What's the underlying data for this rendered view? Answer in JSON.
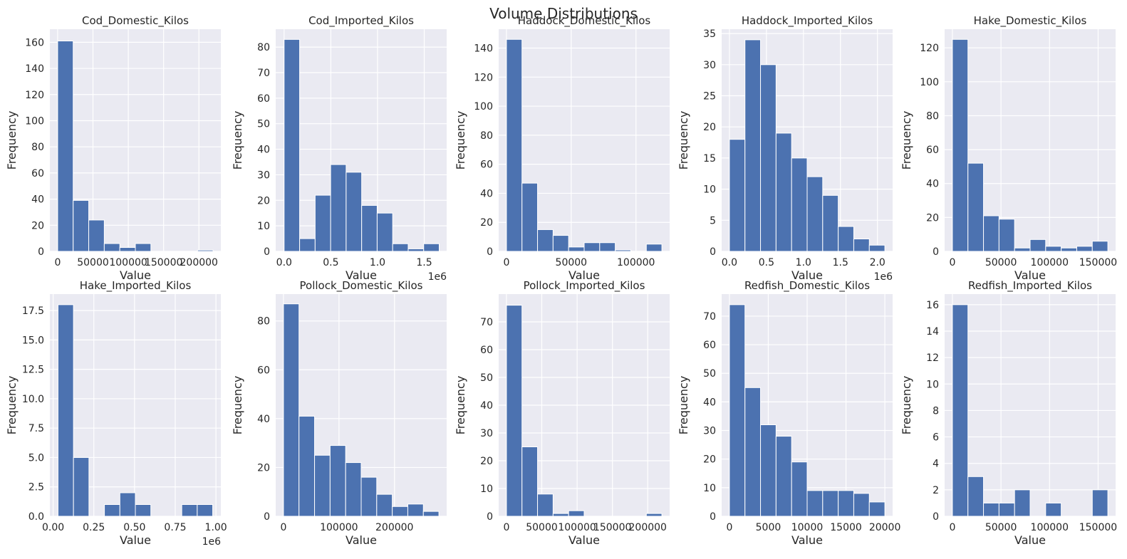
{
  "figure": {
    "title": "Volume Distributions",
    "background": "#ffffff",
    "axes_face": "#eaeaf2",
    "grid_color": "#ffffff",
    "bar_color": "#4c72b0"
  },
  "chart_data": [
    {
      "type": "bar",
      "title": "Cod_Domestic_Kilos",
      "xlabel": "Value",
      "ylabel": "Frequency",
      "xlim": [
        -11000,
        231000
      ],
      "ylim": [
        0,
        170
      ],
      "xticks": [
        0,
        50000,
        100000,
        150000,
        200000
      ],
      "xtick_labels": [
        "0",
        "50000",
        "100000",
        "150000",
        "200000"
      ],
      "yticks": [
        0,
        20,
        40,
        60,
        80,
        100,
        120,
        140,
        160
      ],
      "ytick_labels": [
        "0",
        "20",
        "40",
        "60",
        "80",
        "100",
        "120",
        "140",
        "160"
      ],
      "offset_text": "",
      "bin_edges": [
        0,
        22000,
        44000,
        66000,
        88000,
        110000,
        132000,
        154000,
        176000,
        198000,
        220000
      ],
      "values": [
        161,
        39,
        24,
        6,
        3,
        6,
        0,
        0,
        0,
        1
      ]
    },
    {
      "type": "bar",
      "title": "Cod_Imported_Kilos",
      "xlabel": "Value",
      "ylabel": "Frequency",
      "xlim": [
        -0.09,
        1.74
      ],
      "ylim": [
        0,
        87
      ],
      "xticks": [
        0,
        0.5,
        1.0,
        1.5
      ],
      "xtick_labels": [
        "0.0",
        "0.5",
        "1.0",
        "1.5"
      ],
      "yticks": [
        0,
        10,
        20,
        30,
        40,
        50,
        60,
        70,
        80
      ],
      "ytick_labels": [
        "0",
        "10",
        "20",
        "30",
        "40",
        "50",
        "60",
        "70",
        "80"
      ],
      "offset_text": "1e6",
      "bin_edges": [
        0,
        0.166,
        0.332,
        0.498,
        0.664,
        0.83,
        0.996,
        1.162,
        1.328,
        1.494,
        1.66
      ],
      "values": [
        83,
        5,
        22,
        34,
        31,
        18,
        15,
        3,
        1,
        3
      ]
    },
    {
      "type": "bar",
      "title": "Haddock_Domestic_Kilos",
      "xlabel": "Value",
      "ylabel": "Frequency",
      "xlim": [
        -6000,
        126000
      ],
      "ylim": [
        0,
        153
      ],
      "xticks": [
        0,
        50000,
        100000
      ],
      "xtick_labels": [
        "0",
        "50000",
        "100000"
      ],
      "yticks": [
        0,
        20,
        40,
        60,
        80,
        100,
        120,
        140
      ],
      "ytick_labels": [
        "0",
        "20",
        "40",
        "60",
        "80",
        "100",
        "120",
        "140"
      ],
      "offset_text": "",
      "bin_edges": [
        0,
        12000,
        24000,
        36000,
        48000,
        60000,
        72000,
        84000,
        96000,
        108000,
        120000
      ],
      "values": [
        146,
        47,
        15,
        11,
        3,
        6,
        6,
        1,
        0,
        5
      ]
    },
    {
      "type": "bar",
      "title": "Haddock_Imported_Kilos",
      "xlabel": "Value",
      "ylabel": "Frequency",
      "xlim": [
        -0.105,
        2.205
      ],
      "ylim": [
        0,
        35.7
      ],
      "xticks": [
        0,
        0.5,
        1.0,
        1.5,
        2.0
      ],
      "xtick_labels": [
        "0.0",
        "0.5",
        "1.0",
        "1.5",
        "2.0"
      ],
      "yticks": [
        0,
        5,
        10,
        15,
        20,
        25,
        30,
        35
      ],
      "ytick_labels": [
        "0",
        "5",
        "10",
        "15",
        "20",
        "25",
        "30",
        "35"
      ],
      "offset_text": "1e6",
      "bin_edges": [
        0,
        0.21,
        0.42,
        0.63,
        0.84,
        1.05,
        1.26,
        1.47,
        1.68,
        1.89,
        2.1
      ],
      "values": [
        18,
        34,
        30,
        19,
        15,
        12,
        9,
        4,
        2,
        1
      ]
    },
    {
      "type": "bar",
      "title": "Hake_Domestic_Kilos",
      "xlabel": "Value",
      "ylabel": "Frequency",
      "xlim": [
        -8000,
        168000
      ],
      "ylim": [
        0,
        131
      ],
      "xticks": [
        0,
        50000,
        100000,
        150000
      ],
      "xtick_labels": [
        "0",
        "50000",
        "100000",
        "150000"
      ],
      "yticks": [
        0,
        20,
        40,
        60,
        80,
        100,
        120
      ],
      "ytick_labels": [
        "0",
        "20",
        "40",
        "60",
        "80",
        "100",
        "120"
      ],
      "offset_text": "",
      "bin_edges": [
        0,
        16000,
        32000,
        48000,
        64000,
        80000,
        96000,
        112000,
        128000,
        144000,
        160000
      ],
      "values": [
        125,
        52,
        21,
        19,
        2,
        7,
        3,
        2,
        3,
        6
      ]
    },
    {
      "type": "bar",
      "title": "Hake_Imported_Kilos",
      "xlabel": "Value",
      "ylabel": "Frequency",
      "xlim": [
        -0.02,
        1.03
      ],
      "ylim": [
        0,
        18.9
      ],
      "xticks": [
        0,
        0.25,
        0.5,
        0.75,
        1.0
      ],
      "xtick_labels": [
        "0.00",
        "0.25",
        "0.50",
        "0.75",
        "1.00"
      ],
      "yticks": [
        0,
        2.5,
        5.0,
        7.5,
        10.0,
        12.5,
        15.0,
        17.5
      ],
      "ytick_labels": [
        "0.0",
        "2.5",
        "5.0",
        "7.5",
        "10.0",
        "12.5",
        "15.0",
        "17.5"
      ],
      "offset_text": "1e6",
      "bin_edges": [
        0.03,
        0.125,
        0.22,
        0.315,
        0.41,
        0.505,
        0.6,
        0.695,
        0.79,
        0.885,
        0.98
      ],
      "values": [
        18,
        5,
        0,
        1,
        2,
        1,
        0,
        0,
        1,
        1
      ]
    },
    {
      "type": "bar",
      "title": "Pollock_Domestic_Kilos",
      "xlabel": "Value",
      "ylabel": "Frequency",
      "xlim": [
        -14000,
        294000
      ],
      "ylim": [
        0,
        91
      ],
      "xticks": [
        0,
        100000,
        200000
      ],
      "xtick_labels": [
        "0",
        "100000",
        "200000"
      ],
      "yticks": [
        0,
        20,
        40,
        60,
        80
      ],
      "ytick_labels": [
        "0",
        "20",
        "40",
        "60",
        "80"
      ],
      "offset_text": "",
      "bin_edges": [
        0,
        28000,
        56000,
        84000,
        112000,
        140000,
        168000,
        196000,
        224000,
        252000,
        280000
      ],
      "values": [
        87,
        41,
        25,
        29,
        22,
        16,
        9,
        4,
        5,
        2
      ]
    },
    {
      "type": "bar",
      "title": "Pollock_Imported_Kilos",
      "xlabel": "Value",
      "ylabel": "Frequency",
      "xlim": [
        -11000,
        231000
      ],
      "ylim": [
        0,
        80
      ],
      "xticks": [
        0,
        50000,
        100000,
        150000,
        200000
      ],
      "xtick_labels": [
        "0",
        "50000",
        "100000",
        "150000",
        "200000"
      ],
      "yticks": [
        0,
        10,
        20,
        30,
        40,
        50,
        60,
        70
      ],
      "ytick_labels": [
        "0",
        "10",
        "20",
        "30",
        "40",
        "50",
        "60",
        "70"
      ],
      "offset_text": "",
      "bin_edges": [
        0,
        22000,
        44000,
        66000,
        88000,
        110000,
        132000,
        154000,
        176000,
        198000,
        220000
      ],
      "values": [
        76,
        25,
        8,
        1,
        2,
        0,
        0,
        0,
        0,
        1
      ]
    },
    {
      "type": "bar",
      "title": "Redfish_Domestic_Kilos",
      "xlabel": "Value",
      "ylabel": "Frequency",
      "xlim": [
        -1000,
        21000
      ],
      "ylim": [
        0,
        77.7
      ],
      "xticks": [
        0,
        5000,
        10000,
        15000,
        20000
      ],
      "xtick_labels": [
        "0",
        "5000",
        "10000",
        "15000",
        "20000"
      ],
      "yticks": [
        0,
        10,
        20,
        30,
        40,
        50,
        60,
        70
      ],
      "ytick_labels": [
        "0",
        "10",
        "20",
        "30",
        "40",
        "50",
        "60",
        "70"
      ],
      "offset_text": "",
      "bin_edges": [
        0,
        2000,
        4000,
        6000,
        8000,
        10000,
        12000,
        14000,
        16000,
        18000,
        20000
      ],
      "values": [
        74,
        45,
        32,
        28,
        19,
        9,
        9,
        9,
        8,
        5
      ]
    },
    {
      "type": "bar",
      "title": "Redfish_Imported_Kilos",
      "xlabel": "Value",
      "ylabel": "Frequency",
      "xlim": [
        -8000,
        168000
      ],
      "ylim": [
        0,
        16.8
      ],
      "xticks": [
        0,
        50000,
        100000,
        150000
      ],
      "xtick_labels": [
        "0",
        "50000",
        "100000",
        "150000"
      ],
      "yticks": [
        0,
        2,
        4,
        6,
        8,
        10,
        12,
        14,
        16
      ],
      "ytick_labels": [
        "0",
        "2",
        "4",
        "6",
        "8",
        "10",
        "12",
        "14",
        "16"
      ],
      "offset_text": "",
      "bin_edges": [
        0,
        16000,
        32000,
        48000,
        64000,
        80000,
        96000,
        112000,
        128000,
        144000,
        160000
      ],
      "values": [
        16,
        3,
        1,
        1,
        2,
        0,
        1,
        0,
        0,
        2
      ]
    }
  ]
}
